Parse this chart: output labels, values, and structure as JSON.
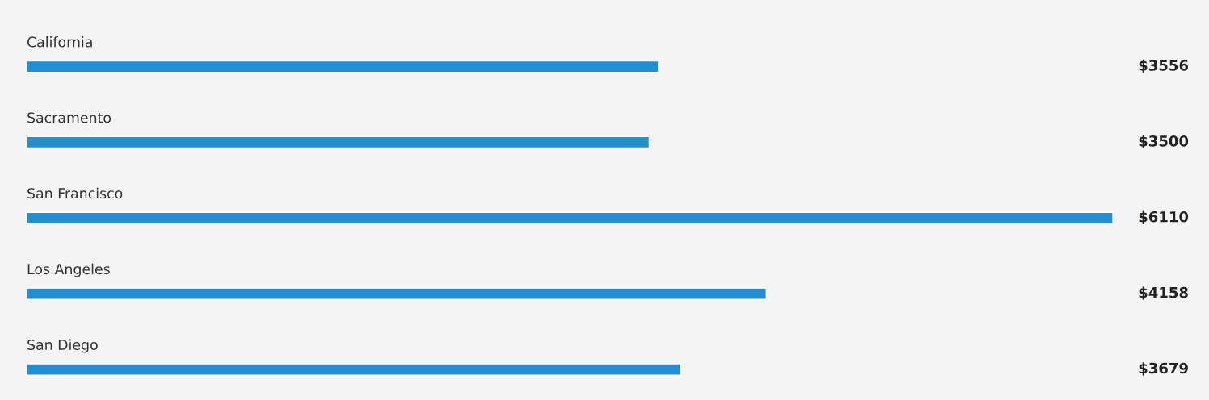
{
  "chart_data": {
    "type": "bar",
    "orientation": "horizontal",
    "categories": [
      "California",
      "Sacramento",
      "San Francisco",
      "Los Angeles",
      "San Diego"
    ],
    "values": [
      3556,
      3500,
      6110,
      4158,
      3679
    ],
    "value_labels": [
      "$3556",
      "$3500",
      "$6110",
      "$4158",
      "$3679"
    ],
    "color": "#1f8fd6"
  }
}
